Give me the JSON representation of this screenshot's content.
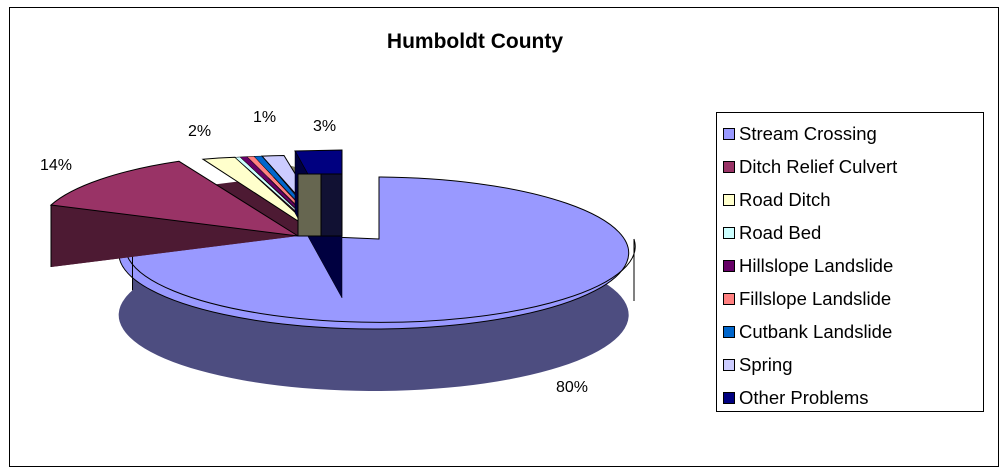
{
  "chart_data": {
    "type": "pie",
    "title": "Humboldt County",
    "categories": [
      "Stream Crossing",
      "Ditch Relief Culvert",
      "Road Ditch",
      "Road Bed",
      "Hillslope Landslide",
      "Fillslope Landslide",
      "Cutbank Landslide",
      "Spring",
      "Other Problems"
    ],
    "values": [
      80,
      14,
      2,
      0,
      0,
      0,
      0,
      1,
      3
    ],
    "labels": [
      "80%",
      "14%",
      "2%",
      "",
      "",
      "",
      "",
      "1%",
      "3%"
    ],
    "colors": [
      "#9999FF",
      "#993366",
      "#FFFFCC",
      "#CCFFFF",
      "#660066",
      "#FF8080",
      "#0066CC",
      "#CCCCFF",
      "#000080"
    ],
    "legend_position": "right"
  }
}
